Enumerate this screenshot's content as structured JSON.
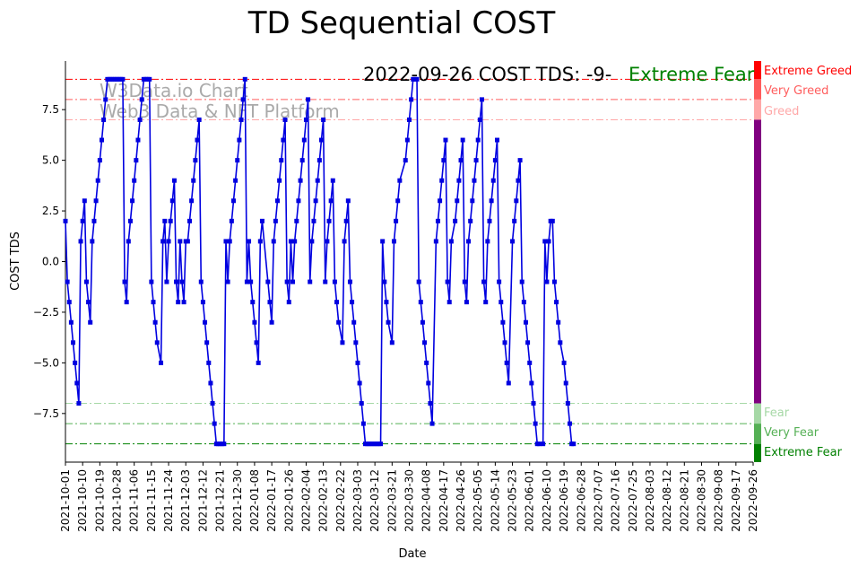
{
  "chart_data": {
    "type": "line",
    "title": "TD Sequential COST",
    "xlabel": "Date",
    "ylabel": "COST TDS",
    "ylim": [
      -9.9,
      9.9
    ],
    "y_ticks": [
      -7.5,
      -5.0,
      -2.5,
      0.0,
      2.5,
      5.0,
      7.5
    ],
    "y_tick_labels": [
      "−7.5",
      "−5.0",
      "−2.5",
      "0.0",
      "2.5",
      "5.0",
      "7.5"
    ],
    "x_start": "2021-10-01",
    "x_end": "2022-09-26",
    "x_ticks": [
      "2021-10-01",
      "2021-10-10",
      "2021-10-19",
      "2021-10-28",
      "2021-11-06",
      "2021-11-15",
      "2021-11-24",
      "2021-12-03",
      "2021-12-12",
      "2021-12-21",
      "2021-12-30",
      "2022-01-08",
      "2022-01-17",
      "2022-01-26",
      "2022-02-04",
      "2022-02-13",
      "2022-02-22",
      "2022-03-03",
      "2022-03-12",
      "2022-03-21",
      "2022-03-30",
      "2022-04-08",
      "2022-04-17",
      "2022-04-26",
      "2022-05-05",
      "2022-05-14",
      "2022-05-23",
      "2022-06-01",
      "2022-06-10",
      "2022-06-19",
      "2022-06-28",
      "2022-07-07",
      "2022-07-16",
      "2022-07-25",
      "2022-08-03",
      "2022-08-12",
      "2022-08-21",
      "2022-08-30",
      "2022-09-08",
      "2022-09-17",
      "2022-09-26"
    ],
    "annotation": "2022-09-26 COST TDS: -9-",
    "annotation_status": "Extreme Fear",
    "watermark": [
      "W3Data.io Chart",
      "Web3 Data & NFT Platform"
    ],
    "levels": [
      {
        "name": "Extreme Greed",
        "value": 9,
        "color": "#ff0000"
      },
      {
        "name": "Very Greed",
        "value": 8,
        "color": "#ff5c5c"
      },
      {
        "name": "Greed",
        "value": 7,
        "color": "#ffa8a8"
      },
      {
        "name": "Fear",
        "value": -7,
        "color": "#a6d8a6"
      },
      {
        "name": "Very Fear",
        "value": -8,
        "color": "#55b055"
      },
      {
        "name": "Extreme Fear",
        "value": -9,
        "color": "#008000"
      }
    ],
    "series": [
      {
        "name": "COST TDS",
        "color": "#0000e0",
        "points": [
          [
            0,
            2
          ],
          [
            1,
            -1
          ],
          [
            2,
            -2
          ],
          [
            3,
            -3
          ],
          [
            4,
            -4
          ],
          [
            5,
            -5
          ],
          [
            6,
            -6
          ],
          [
            7,
            -7
          ],
          [
            8,
            1
          ],
          [
            9,
            2
          ],
          [
            10,
            3
          ],
          [
            11,
            -1
          ],
          [
            12,
            -2
          ],
          [
            13,
            -3
          ],
          [
            14,
            1
          ],
          [
            15,
            2
          ],
          [
            16,
            3
          ],
          [
            17,
            4
          ],
          [
            18,
            5
          ],
          [
            19,
            6
          ],
          [
            20,
            7
          ],
          [
            21,
            8
          ],
          [
            22,
            9
          ],
          [
            23,
            9
          ],
          [
            24,
            9
          ],
          [
            25,
            9
          ],
          [
            26,
            9
          ],
          [
            27,
            9
          ],
          [
            28,
            9
          ],
          [
            29,
            9
          ],
          [
            30,
            9
          ],
          [
            31,
            -1
          ],
          [
            32,
            -2
          ],
          [
            33,
            1
          ],
          [
            34,
            2
          ],
          [
            35,
            3
          ],
          [
            36,
            4
          ],
          [
            37,
            5
          ],
          [
            38,
            6
          ],
          [
            39,
            7
          ],
          [
            40,
            8
          ],
          [
            41,
            9
          ],
          [
            42,
            9
          ],
          [
            43,
            9
          ],
          [
            44,
            9
          ],
          [
            45,
            -1
          ],
          [
            46,
            -2
          ],
          [
            47,
            -3
          ],
          [
            48,
            -4
          ],
          [
            50,
            -5
          ],
          [
            51,
            1
          ],
          [
            52,
            2
          ],
          [
            53,
            -1
          ],
          [
            54,
            1
          ],
          [
            55,
            2
          ],
          [
            56,
            3
          ],
          [
            57,
            4
          ],
          [
            58,
            -1
          ],
          [
            59,
            -2
          ],
          [
            60,
            1
          ],
          [
            61,
            -1
          ],
          [
            62,
            -2
          ],
          [
            63,
            1
          ],
          [
            64,
            1
          ],
          [
            65,
            2
          ],
          [
            66,
            3
          ],
          [
            67,
            4
          ],
          [
            68,
            5
          ],
          [
            69,
            6
          ],
          [
            70,
            7
          ],
          [
            71,
            -1
          ],
          [
            72,
            -2
          ],
          [
            73,
            -3
          ],
          [
            74,
            -4
          ],
          [
            75,
            -5
          ],
          [
            76,
            -6
          ],
          [
            77,
            -7
          ],
          [
            78,
            -8
          ],
          [
            79,
            -9
          ],
          [
            80,
            -9
          ],
          [
            81,
            -9
          ],
          [
            82,
            -9
          ],
          [
            83,
            -9
          ],
          [
            84,
            1
          ],
          [
            85,
            -1
          ],
          [
            86,
            1
          ],
          [
            87,
            2
          ],
          [
            88,
            3
          ],
          [
            89,
            4
          ],
          [
            90,
            5
          ],
          [
            91,
            6
          ],
          [
            92,
            7
          ],
          [
            93,
            8
          ],
          [
            94,
            9
          ],
          [
            95,
            -1
          ],
          [
            96,
            1
          ],
          [
            97,
            -1
          ],
          [
            98,
            -2
          ],
          [
            99,
            -3
          ],
          [
            100,
            -4
          ],
          [
            101,
            -5
          ],
          [
            102,
            1
          ],
          [
            103,
            2
          ],
          [
            106,
            -1
          ],
          [
            107,
            -2
          ],
          [
            108,
            -3
          ],
          [
            109,
            1
          ],
          [
            110,
            2
          ],
          [
            111,
            3
          ],
          [
            112,
            4
          ],
          [
            113,
            5
          ],
          [
            114,
            6
          ],
          [
            115,
            7
          ],
          [
            116,
            -1
          ],
          [
            117,
            -2
          ],
          [
            118,
            1
          ],
          [
            119,
            -1
          ],
          [
            120,
            1
          ],
          [
            121,
            2
          ],
          [
            122,
            3
          ],
          [
            123,
            4
          ],
          [
            124,
            5
          ],
          [
            125,
            6
          ],
          [
            126,
            7
          ],
          [
            127,
            8
          ],
          [
            128,
            -1
          ],
          [
            129,
            1
          ],
          [
            130,
            2
          ],
          [
            131,
            3
          ],
          [
            132,
            4
          ],
          [
            133,
            5
          ],
          [
            134,
            6
          ],
          [
            135,
            7
          ],
          [
            136,
            -1
          ],
          [
            137,
            1
          ],
          [
            138,
            2
          ],
          [
            139,
            3
          ],
          [
            140,
            4
          ],
          [
            141,
            -1
          ],
          [
            142,
            -2
          ],
          [
            143,
            -3
          ],
          [
            145,
            -4
          ],
          [
            146,
            1
          ],
          [
            147,
            2
          ],
          [
            148,
            3
          ],
          [
            149,
            -1
          ],
          [
            150,
            -2
          ],
          [
            151,
            -3
          ],
          [
            152,
            -4
          ],
          [
            153,
            -5
          ],
          [
            154,
            -6
          ],
          [
            155,
            -7
          ],
          [
            156,
            -8
          ],
          [
            157,
            -9
          ],
          [
            158,
            -9
          ],
          [
            159,
            -9
          ],
          [
            160,
            -9
          ],
          [
            161,
            -9
          ],
          [
            162,
            -9
          ],
          [
            163,
            -9
          ],
          [
            164,
            -9
          ],
          [
            165,
            -9
          ],
          [
            166,
            1
          ],
          [
            167,
            -1
          ],
          [
            168,
            -2
          ],
          [
            169,
            -3
          ],
          [
            171,
            -4
          ],
          [
            172,
            1
          ],
          [
            173,
            2
          ],
          [
            174,
            3
          ],
          [
            175,
            4
          ],
          [
            178,
            5
          ],
          [
            179,
            6
          ],
          [
            180,
            7
          ],
          [
            181,
            8
          ],
          [
            182,
            9
          ],
          [
            183,
            9
          ],
          [
            184,
            9
          ],
          [
            185,
            -1
          ],
          [
            186,
            -2
          ],
          [
            187,
            -3
          ],
          [
            188,
            -4
          ],
          [
            189,
            -5
          ],
          [
            190,
            -6
          ],
          [
            191,
            -7
          ],
          [
            192,
            -8
          ],
          [
            194,
            1
          ],
          [
            195,
            2
          ],
          [
            196,
            3
          ],
          [
            197,
            4
          ],
          [
            198,
            5
          ],
          [
            199,
            6
          ],
          [
            200,
            -1
          ],
          [
            201,
            -2
          ],
          [
            202,
            1
          ],
          [
            204,
            2
          ],
          [
            205,
            3
          ],
          [
            206,
            4
          ],
          [
            207,
            5
          ],
          [
            208,
            6
          ],
          [
            209,
            -1
          ],
          [
            210,
            -2
          ],
          [
            211,
            1
          ],
          [
            212,
            2
          ],
          [
            213,
            3
          ],
          [
            214,
            4
          ],
          [
            215,
            5
          ],
          [
            216,
            6
          ],
          [
            217,
            7
          ],
          [
            218,
            8
          ],
          [
            219,
            -1
          ],
          [
            220,
            -2
          ],
          [
            221,
            1
          ],
          [
            222,
            2
          ],
          [
            223,
            3
          ],
          [
            224,
            4
          ],
          [
            225,
            5
          ],
          [
            226,
            6
          ],
          [
            227,
            -1
          ],
          [
            228,
            -2
          ],
          [
            229,
            -3
          ],
          [
            230,
            -4
          ],
          [
            231,
            -5
          ],
          [
            232,
            -6
          ],
          [
            234,
            1
          ],
          [
            235,
            2
          ],
          [
            236,
            3
          ],
          [
            237,
            4
          ],
          [
            238,
            5
          ],
          [
            239,
            -1
          ],
          [
            240,
            -2
          ],
          [
            241,
            -3
          ],
          [
            242,
            -4
          ],
          [
            243,
            -5
          ],
          [
            244,
            -6
          ],
          [
            245,
            -7
          ],
          [
            246,
            -8
          ],
          [
            247,
            -9
          ],
          [
            248,
            -9
          ],
          [
            250,
            -9
          ],
          [
            251,
            1
          ],
          [
            252,
            -1
          ],
          [
            253,
            1
          ],
          [
            254,
            2
          ],
          [
            255,
            2
          ],
          [
            256,
            -1
          ],
          [
            257,
            -2
          ],
          [
            258,
            -3
          ],
          [
            259,
            -4
          ],
          [
            261,
            -5
          ],
          [
            262,
            -6
          ],
          [
            263,
            -7
          ],
          [
            264,
            -8
          ],
          [
            265,
            -9
          ],
          [
            266,
            -9
          ]
        ]
      }
    ]
  }
}
